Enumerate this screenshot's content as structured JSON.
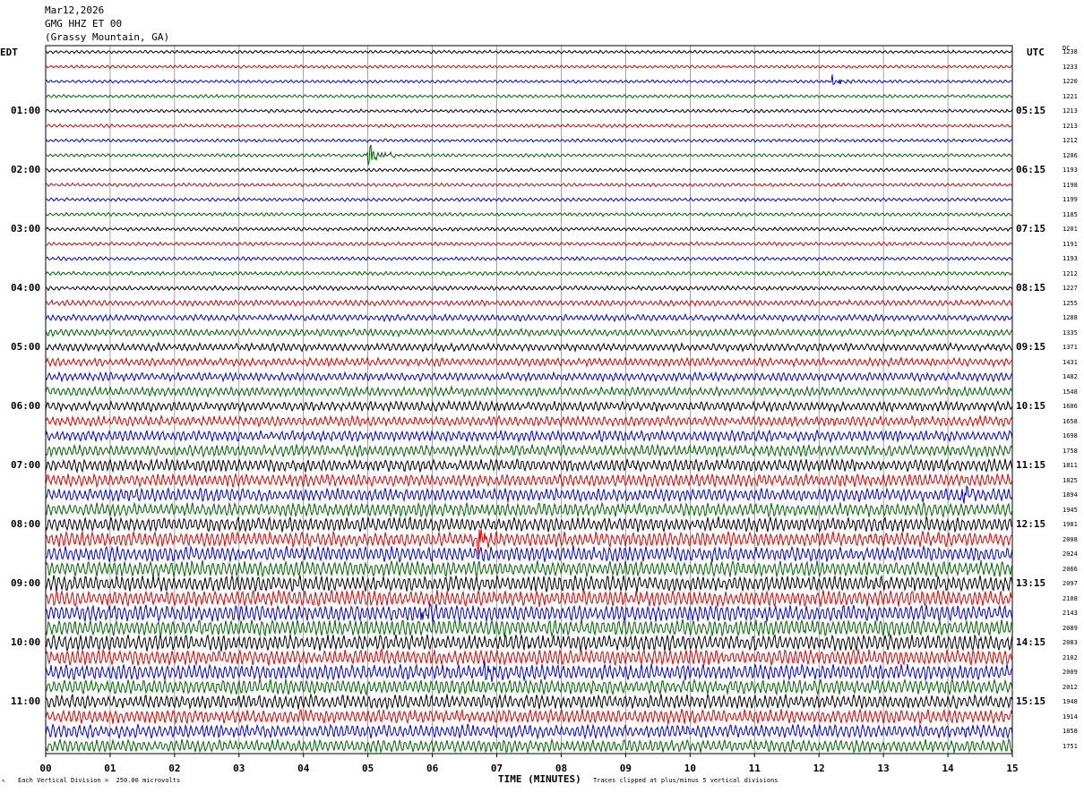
{
  "header": {
    "date": "Mar12,2026",
    "station": "GMG HHZ ET 00",
    "location": "(Grassy Mountain, GA)"
  },
  "left_tz": "EDT",
  "right_tz": "UTC",
  "dc_label": "DC",
  "footer": {
    "scale_note": "Each Vertical Division =  250.00 microvolts",
    "clip_note": "Traces clipped at plus/minus 5 vertical divisions",
    "corner_mark": "↖"
  },
  "colors": {
    "trace_cycle": [
      "#000000",
      "#e00000",
      "#0000e0",
      "#006400"
    ],
    "grid": "#000000"
  },
  "chart_data": {
    "type": "line",
    "subtype": "helicorder",
    "xlabel": "TIME (MINUTES)",
    "x_ticks": [
      "00",
      "01",
      "02",
      "03",
      "04",
      "05",
      "06",
      "07",
      "08",
      "09",
      "10",
      "11",
      "12",
      "13",
      "14",
      "15"
    ],
    "xlim": [
      0,
      15
    ],
    "rows_per_hour": 4,
    "left_hour_labels": [
      "01:00",
      "02:00",
      "03:00",
      "04:00",
      "05:00",
      "06:00",
      "07:00",
      "08:00",
      "09:00",
      "10:00",
      "11:00"
    ],
    "right_hour_labels": [
      "05:15",
      "06:15",
      "07:15",
      "08:15",
      "09:15",
      "10:15",
      "11:15",
      "12:15",
      "13:15",
      "14:15",
      "15:15"
    ],
    "hour_label_rows": [
      4,
      8,
      12,
      16,
      20,
      24,
      28,
      32,
      36,
      40,
      44
    ],
    "dc_offsets": [
      1238,
      1233,
      1220,
      1221,
      1213,
      1213,
      1212,
      1206,
      1193,
      1198,
      1199,
      1185,
      1201,
      1191,
      1193,
      1212,
      1227,
      1255,
      1288,
      1335,
      1371,
      1431,
      1482,
      1548,
      1606,
      1658,
      1698,
      1758,
      1811,
      1825,
      1894,
      1945,
      1981,
      2008,
      2024,
      2066,
      2097,
      2108,
      2143,
      2089,
      2083,
      2102,
      2009,
      2012,
      1948,
      1914,
      1858,
      1751
    ],
    "trace_amplitude": [
      1.5,
      1.5,
      1.5,
      1.5,
      1.6,
      1.6,
      1.6,
      1.6,
      1.7,
      1.7,
      1.7,
      1.7,
      1.8,
      1.8,
      1.8,
      1.9,
      2.2,
      2.8,
      3.2,
      3.5,
      3.8,
      4.0,
      4.2,
      4.5,
      4.8,
      5.0,
      5.3,
      5.6,
      6.0,
      6.2,
      6.4,
      6.6,
      7.0,
      7.2,
      7.3,
      7.5,
      7.6,
      7.8,
      8.0,
      8.0,
      7.8,
      7.6,
      7.5,
      7.3,
      7.0,
      6.8,
      6.5,
      6.2
    ],
    "events": [
      {
        "row": 7,
        "minute": 5.0,
        "amplitude": 18
      },
      {
        "row": 2,
        "minute": 12.2,
        "amplitude": 7
      },
      {
        "row": 33,
        "minute": 6.7,
        "amplitude": 14
      },
      {
        "row": 42,
        "minute": 6.8,
        "amplitude": 12
      },
      {
        "row": 38,
        "minute": 5.8,
        "amplitude": 12
      },
      {
        "row": 30,
        "minute": 14.2,
        "amplitude": 11
      }
    ]
  }
}
